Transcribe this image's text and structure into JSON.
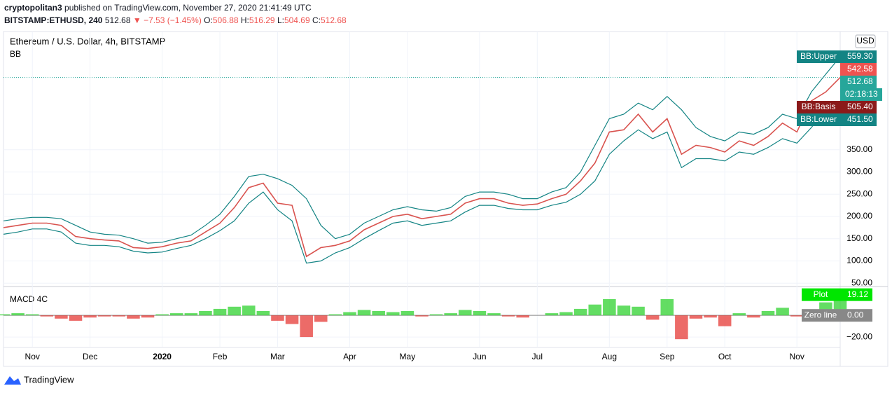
{
  "header": {
    "author": "cryptopolitan3",
    "published": "published on TradingView.com, November 27, 2020 21:41:49 UTC",
    "symbol": "BITSTAMP:ETHUSD, 240",
    "last": "512.68",
    "arrow": "▼",
    "change": "−7.53 (−1.45%)",
    "o_label": "O:",
    "o": "506.88",
    "h_label": "H:",
    "h": "516.29",
    "l_label": "L:",
    "l": "504.69",
    "c_label": "C:",
    "c": "512.68"
  },
  "footer": {
    "brand": "TradingView"
  },
  "chart_data": {
    "type": "line",
    "title": "Ethereum / U.S. Dollar, 4h, BITSTAMP",
    "indicator": "BB",
    "currency": "USD",
    "categories": [
      null,
      null,
      "Nov",
      null,
      null,
      null,
      "Dec",
      null,
      null,
      null,
      null,
      "2020",
      null,
      null,
      null,
      "Feb",
      null,
      null,
      null,
      "Mar",
      null,
      null,
      null,
      null,
      "Apr",
      null,
      null,
      null,
      "May",
      null,
      null,
      null,
      null,
      "Jun",
      null,
      null,
      null,
      "Jul",
      null,
      null,
      null,
      null,
      "Aug",
      null,
      null,
      null,
      "Sep",
      null,
      null,
      null,
      "Oct",
      null,
      null,
      null,
      null,
      "Nov",
      null,
      null,
      null
    ],
    "series": [
      {
        "name": "Close",
        "color": "#d9534f",
        "values": [
          175,
          180,
          185,
          185,
          180,
          155,
          150,
          147,
          145,
          130,
          128,
          132,
          140,
          145,
          165,
          185,
          220,
          265,
          275,
          230,
          225,
          110,
          130,
          135,
          145,
          170,
          185,
          200,
          205,
          195,
          200,
          205,
          230,
          240,
          240,
          230,
          225,
          228,
          240,
          250,
          280,
          320,
          390,
          395,
          430,
          390,
          420,
          340,
          360,
          355,
          345,
          370,
          360,
          380,
          410,
          390,
          460,
          480,
          512.68
        ]
      },
      {
        "name": "BB:Upper",
        "color": "#138484",
        "values": [
          190,
          195,
          198,
          198,
          195,
          180,
          165,
          160,
          158,
          150,
          140,
          142,
          150,
          158,
          180,
          205,
          245,
          290,
          295,
          285,
          270,
          240,
          180,
          150,
          160,
          185,
          200,
          215,
          222,
          215,
          212,
          220,
          245,
          255,
          255,
          250,
          240,
          240,
          255,
          265,
          300,
          360,
          420,
          430,
          455,
          440,
          470,
          440,
          400,
          380,
          370,
          390,
          385,
          400,
          430,
          420,
          480,
          520,
          559.3
        ]
      },
      {
        "name": "BB:Lower",
        "color": "#138484",
        "values": [
          160,
          165,
          172,
          172,
          165,
          140,
          135,
          135,
          132,
          122,
          118,
          120,
          128,
          135,
          150,
          168,
          190,
          230,
          255,
          215,
          190,
          95,
          100,
          118,
          130,
          150,
          168,
          185,
          190,
          180,
          185,
          190,
          210,
          225,
          225,
          218,
          215,
          215,
          225,
          232,
          250,
          280,
          340,
          370,
          395,
          375,
          390,
          310,
          330,
          330,
          325,
          345,
          340,
          355,
          375,
          365,
          400,
          440,
          451.5
        ]
      }
    ],
    "ylim": [
      44,
      616
    ],
    "yticks": [
      {
        "value": 50,
        "label": "50.00"
      },
      {
        "value": 100,
        "label": "100.00"
      },
      {
        "value": 150,
        "label": "150.00"
      },
      {
        "value": 200,
        "label": "200.00"
      },
      {
        "value": 250,
        "label": "250.00"
      },
      {
        "value": 300,
        "label": "300.00"
      },
      {
        "value": 350,
        "label": "350.00"
      }
    ],
    "price_labels": [
      {
        "name": "BB:Upper",
        "value": 559.3,
        "label": "559.30",
        "color": "#138484"
      },
      {
        "name": null,
        "value": 542.58,
        "label": "542.58",
        "color": "#ef5350"
      },
      {
        "name": null,
        "value": 512.68,
        "label": "512.68",
        "color": "#26a69a"
      },
      {
        "name": "BB:Basis",
        "value": 505.4,
        "label": "505.40",
        "color": "#8b1a1a"
      },
      {
        "name": "BB:Lower",
        "value": 451.5,
        "label": "451.50",
        "color": "#138484"
      }
    ],
    "countdown": "02:18:13",
    "macd": {
      "title": "MACD 4C",
      "pos_color": "#2fd12f",
      "neg_color": "#e53935",
      "values": [
        1,
        2,
        1,
        -1,
        -3,
        -5,
        -2,
        -1,
        -1,
        -3,
        -2,
        1,
        2,
        2,
        4,
        6,
        8,
        9,
        4,
        -5,
        -8,
        -20,
        -6,
        1,
        3,
        5,
        4,
        3,
        4,
        -1,
        1,
        2,
        5,
        4,
        2,
        -1,
        -2,
        0,
        2,
        3,
        6,
        10,
        15,
        9,
        8,
        -4,
        15,
        -22,
        -3,
        -2,
        -10,
        2,
        -2,
        4,
        7,
        -1,
        -4,
        12,
        19.12
      ],
      "ylim": [
        -29,
        26
      ],
      "yticks": [
        {
          "value": -20,
          "label": "−20.00"
        }
      ],
      "plot_label": {
        "name": "Plot",
        "value": 19.12,
        "label": "19.12",
        "color": "#00e600"
      },
      "zero_label": {
        "name": "Zero line",
        "value": 0,
        "label": "0.00",
        "color": "#888888"
      }
    }
  }
}
